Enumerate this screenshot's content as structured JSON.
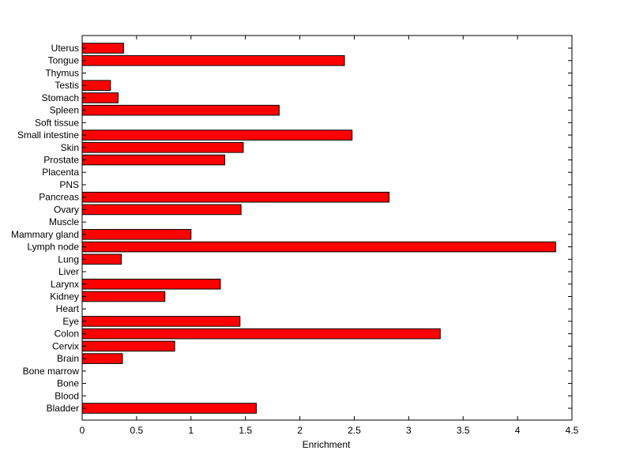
{
  "chart_data": {
    "type": "bar",
    "orientation": "horizontal",
    "title": "",
    "xlabel": "Enrichment",
    "ylabel": "",
    "xlim": [
      0,
      4.5
    ],
    "xticks": [
      0,
      0.5,
      1,
      1.5,
      2,
      2.5,
      3,
      3.5,
      4,
      4.5
    ],
    "grid": false,
    "bar_color": "#ff0000",
    "bar_edge_color": "#000000",
    "categories": [
      "Bladder",
      "Blood",
      "Bone",
      "Bone marrow",
      "Brain",
      "Cervix",
      "Colon",
      "Eye",
      "Heart",
      "Kidney",
      "Larynx",
      "Liver",
      "Lung",
      "Lymph node",
      "Mammary gland",
      "Muscle",
      "Ovary",
      "Pancreas",
      "PNS",
      "Placenta",
      "Prostate",
      "Skin",
      "Small intestine",
      "Soft tissue",
      "Spleen",
      "Stomach",
      "Testis",
      "Thymus",
      "Tongue",
      "Uterus"
    ],
    "values": [
      1.6,
      0,
      0,
      0,
      0.37,
      0.85,
      3.29,
      1.45,
      0,
      0.76,
      1.27,
      0,
      0.36,
      4.35,
      1.0,
      0,
      1.46,
      2.82,
      0,
      0,
      1.31,
      1.48,
      2.48,
      0,
      1.81,
      0.33,
      0.26,
      0,
      2.41,
      0.38
    ]
  }
}
